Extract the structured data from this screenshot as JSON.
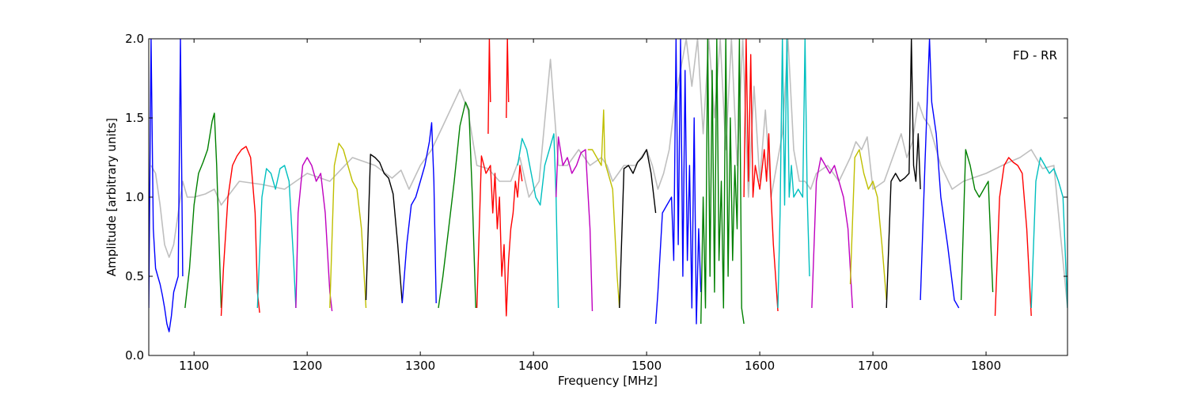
{
  "chart_data": {
    "type": "line",
    "title": "",
    "annotation": "FD - RR",
    "xlabel": "Frequency [MHz]",
    "ylabel": "Amplitude [arbitrary units]",
    "xlim": [
      1060,
      1872
    ],
    "ylim": [
      0.0,
      2.0
    ],
    "xticks": [
      1100,
      1200,
      1300,
      1400,
      1500,
      1600,
      1700,
      1800
    ],
    "xtick_labels": [
      "1100",
      "1200",
      "1300",
      "1400",
      "1500",
      "1600",
      "1700",
      "1800"
    ],
    "yticks": [
      0.0,
      0.5,
      1.0,
      1.5,
      2.0
    ],
    "ytick_labels": [
      "0.0",
      "0.5",
      "1.0",
      "1.5",
      "2.0"
    ],
    "grid": false,
    "colors": {
      "blue": "#0000ff",
      "green": "#008000",
      "red": "#ff0000",
      "cyan": "#00bfbf",
      "magenta": "#bf00bf",
      "olive": "#bfbf00",
      "black": "#000000",
      "background_gray": "#bfbfbf"
    },
    "background_trace": {
      "color": "#bfbfbf",
      "x": [
        1062,
        1066,
        1070,
        1074,
        1078,
        1082,
        1086,
        1090,
        1094,
        1100,
        1110,
        1118,
        1124,
        1140,
        1160,
        1180,
        1200,
        1220,
        1240,
        1260,
        1275,
        1283,
        1290,
        1300,
        1310,
        1320,
        1335,
        1342,
        1350,
        1360,
        1370,
        1380,
        1388,
        1396,
        1405,
        1415,
        1422,
        1430,
        1440,
        1450,
        1460,
        1465,
        1470,
        1480,
        1490,
        1500,
        1505,
        1510,
        1515,
        1520,
        1525,
        1530,
        1535,
        1540,
        1545,
        1550,
        1555,
        1560,
        1565,
        1570,
        1575,
        1580,
        1585,
        1590,
        1595,
        1600,
        1605,
        1610,
        1615,
        1620,
        1625,
        1630,
        1635,
        1640,
        1645,
        1650,
        1660,
        1670,
        1680,
        1685,
        1690,
        1695,
        1700,
        1710,
        1720,
        1725,
        1730,
        1735,
        1740,
        1745,
        1750,
        1760,
        1770,
        1780,
        1800,
        1820,
        1830,
        1840,
        1850,
        1860,
        1872
      ],
      "y": [
        1.2,
        1.15,
        0.95,
        0.7,
        0.62,
        0.7,
        0.9,
        1.1,
        1.0,
        1.0,
        1.02,
        1.05,
        0.95,
        1.1,
        1.08,
        1.05,
        1.15,
        1.1,
        1.25,
        1.2,
        1.12,
        1.17,
        1.05,
        1.2,
        1.3,
        1.45,
        1.68,
        1.55,
        1.2,
        1.18,
        1.1,
        1.1,
        1.25,
        1.0,
        1.1,
        1.87,
        1.2,
        1.2,
        1.3,
        1.2,
        1.25,
        1.2,
        1.1,
        1.2,
        1.2,
        1.3,
        1.2,
        1.05,
        1.15,
        1.3,
        1.6,
        1.8,
        2.0,
        1.7,
        2.0,
        1.4,
        2.0,
        1.5,
        2.0,
        1.3,
        2.0,
        1.2,
        2.0,
        1.0,
        1.7,
        1.1,
        1.55,
        1.0,
        1.2,
        1.4,
        2.0,
        1.3,
        1.1,
        1.1,
        1.05,
        1.15,
        1.2,
        1.1,
        1.25,
        1.35,
        1.3,
        1.38,
        1.05,
        1.1,
        1.3,
        1.4,
        1.25,
        1.35,
        1.6,
        1.5,
        1.45,
        1.2,
        1.05,
        1.1,
        1.15,
        1.22,
        1.25,
        1.3,
        1.18,
        1.2,
        0.3
      ]
    },
    "series": [
      {
        "color": "#0000ff",
        "x": [
          1060,
          1062,
          1064,
          1066,
          1068,
          1070,
          1072,
          1074,
          1076,
          1078,
          1080,
          1082,
          1084,
          1086,
          1088,
          1090
        ],
        "y": [
          0.3,
          2.0,
          0.8,
          0.55,
          0.5,
          0.45,
          0.38,
          0.3,
          0.2,
          0.15,
          0.25,
          0.4,
          0.45,
          0.5,
          2.0,
          0.5
        ]
      },
      {
        "color": "#008000",
        "x": [
          1092,
          1096,
          1100,
          1104,
          1108,
          1112,
          1116,
          1118,
          1120,
          1124
        ],
        "y": [
          0.3,
          0.55,
          0.95,
          1.15,
          1.22,
          1.3,
          1.48,
          1.53,
          1.2,
          0.3
        ]
      },
      {
        "color": "#ff0000",
        "x": [
          1124,
          1126,
          1130,
          1134,
          1138,
          1142,
          1146,
          1150,
          1154,
          1156,
          1158
        ],
        "y": [
          0.25,
          0.55,
          1.0,
          1.2,
          1.26,
          1.3,
          1.32,
          1.25,
          0.9,
          0.4,
          0.27
        ]
      },
      {
        "color": "#00bfbf",
        "x": [
          1156,
          1160,
          1164,
          1168,
          1172,
          1176,
          1180,
          1184,
          1188,
          1190
        ],
        "y": [
          0.3,
          1.0,
          1.18,
          1.15,
          1.05,
          1.18,
          1.2,
          1.1,
          0.6,
          0.3
        ]
      },
      {
        "color": "#bf00bf",
        "x": [
          1190,
          1192,
          1196,
          1200,
          1204,
          1208,
          1212,
          1216,
          1220,
          1222
        ],
        "y": [
          0.3,
          0.9,
          1.2,
          1.25,
          1.2,
          1.1,
          1.15,
          0.9,
          0.4,
          0.28
        ]
      },
      {
        "color": "#bfbf00",
        "x": [
          1220,
          1224,
          1228,
          1232,
          1236,
          1240,
          1244,
          1248,
          1252
        ],
        "y": [
          0.3,
          1.2,
          1.34,
          1.3,
          1.2,
          1.1,
          1.05,
          0.8,
          0.3
        ]
      },
      {
        "color": "#000000",
        "x": [
          1252,
          1256,
          1260,
          1264,
          1268,
          1272,
          1276,
          1280,
          1284
        ],
        "y": [
          0.35,
          1.27,
          1.25,
          1.22,
          1.15,
          1.12,
          1.02,
          0.7,
          0.33
        ]
      },
      {
        "color": "#0000ff",
        "x": [
          1284,
          1288,
          1292,
          1296,
          1300,
          1304,
          1308,
          1310,
          1312,
          1314
        ],
        "y": [
          0.33,
          0.7,
          0.95,
          1.0,
          1.1,
          1.2,
          1.35,
          1.47,
          1.1,
          0.33
        ]
      },
      {
        "color": "#008000",
        "x": [
          1316,
          1320,
          1325,
          1330,
          1335,
          1340,
          1343,
          1346,
          1349
        ],
        "y": [
          0.3,
          0.5,
          0.8,
          1.1,
          1.45,
          1.6,
          1.55,
          1.0,
          0.3
        ]
      },
      {
        "color": "#ff0000",
        "x": [
          1350,
          1354,
          1358,
          1362,
          1364,
          1366,
          1368,
          1370,
          1372,
          1374,
          1376,
          1378,
          1380,
          1382,
          1384,
          1386,
          1388,
          1390
        ],
        "y": [
          0.3,
          1.26,
          1.15,
          1.2,
          0.9,
          1.15,
          0.8,
          1.0,
          0.5,
          0.7,
          0.25,
          0.6,
          0.8,
          0.9,
          1.1,
          1.0,
          1.2,
          1.1
        ]
      },
      {
        "color": "#ff0000",
        "x": [
          1360,
          1361,
          1362
        ],
        "y": [
          1.4,
          2.0,
          1.6
        ]
      },
      {
        "color": "#ff0000",
        "x": [
          1376,
          1377,
          1378
        ],
        "y": [
          1.5,
          2.0,
          1.6
        ]
      },
      {
        "color": "#00bfbf",
        "x": [
          1386,
          1390,
          1394,
          1398,
          1402,
          1406,
          1410,
          1414,
          1418,
          1420,
          1422
        ],
        "y": [
          1.2,
          1.37,
          1.3,
          1.15,
          1.0,
          0.95,
          1.2,
          1.3,
          1.4,
          1.0,
          0.3
        ]
      },
      {
        "color": "#bf00bf",
        "x": [
          1420,
          1422,
          1426,
          1430,
          1434,
          1438,
          1442,
          1446,
          1450,
          1452
        ],
        "y": [
          1.0,
          1.38,
          1.2,
          1.25,
          1.15,
          1.2,
          1.28,
          1.3,
          0.8,
          0.28
        ]
      },
      {
        "color": "#bfbf00",
        "x": [
          1448,
          1452,
          1456,
          1460,
          1462,
          1463,
          1464,
          1466,
          1470,
          1474,
          1476
        ],
        "y": [
          1.3,
          1.3,
          1.25,
          1.2,
          1.55,
          1.25,
          1.2,
          1.15,
          1.05,
          0.5,
          0.3
        ]
      },
      {
        "color": "#000000",
        "x": [
          1476,
          1480,
          1484,
          1488,
          1492,
          1496,
          1500,
          1504,
          1508
        ],
        "y": [
          0.3,
          1.18,
          1.2,
          1.15,
          1.22,
          1.25,
          1.3,
          1.15,
          0.9
        ]
      },
      {
        "color": "#0000ff",
        "x": [
          1508,
          1510,
          1514,
          1518,
          1522,
          1524,
          1526,
          1528,
          1530,
          1532,
          1534,
          1536,
          1538,
          1540,
          1542,
          1544,
          1546,
          1548
        ],
        "y": [
          0.2,
          0.4,
          0.9,
          0.95,
          1.0,
          0.6,
          2.0,
          0.7,
          2.0,
          0.5,
          1.8,
          0.6,
          1.2,
          0.3,
          1.5,
          0.2,
          0.8,
          0.4
        ]
      },
      {
        "color": "#008000",
        "x": [
          1548,
          1550,
          1552,
          1554,
          1556,
          1558,
          1560,
          1562,
          1564,
          1566,
          1568,
          1570,
          1572,
          1574,
          1576,
          1578,
          1580,
          1582,
          1584,
          1586
        ],
        "y": [
          0.2,
          1.0,
          0.3,
          2.0,
          0.5,
          1.8,
          0.4,
          2.0,
          0.6,
          1.1,
          0.3,
          2.0,
          0.5,
          1.5,
          0.6,
          1.2,
          0.8,
          2.0,
          0.3,
          0.2
        ]
      },
      {
        "color": "#ff0000",
        "x": [
          1586,
          1588,
          1590,
          1592,
          1594,
          1596,
          1600,
          1604,
          1606,
          1608,
          1610,
          1612,
          1614,
          1616
        ],
        "y": [
          1.0,
          2.0,
          1.1,
          1.9,
          1.0,
          1.2,
          1.05,
          1.3,
          1.1,
          1.4,
          1.0,
          0.7,
          0.5,
          0.28
        ]
      },
      {
        "color": "#00bfbf",
        "x": [
          1616,
          1618,
          1620,
          1622,
          1624,
          1626,
          1628,
          1630,
          1634,
          1638,
          1640,
          1642,
          1644
        ],
        "y": [
          0.3,
          0.9,
          2.0,
          0.95,
          2.0,
          1.0,
          1.2,
          1.0,
          1.05,
          1.0,
          2.0,
          1.0,
          0.5
        ]
      },
      {
        "color": "#bf00bf",
        "x": [
          1646,
          1650,
          1654,
          1658,
          1662,
          1666,
          1670,
          1674,
          1678,
          1682
        ],
        "y": [
          0.3,
          1.1,
          1.25,
          1.2,
          1.15,
          1.2,
          1.1,
          1.0,
          0.8,
          0.3
        ]
      },
      {
        "color": "#bfbf00",
        "x": [
          1680,
          1684,
          1688,
          1692,
          1696,
          1700,
          1704,
          1708,
          1712
        ],
        "y": [
          0.45,
          1.25,
          1.3,
          1.15,
          1.05,
          1.1,
          1.0,
          0.7,
          0.35
        ]
      },
      {
        "color": "#000000",
        "x": [
          1712,
          1716,
          1720,
          1724,
          1728,
          1732,
          1734,
          1736,
          1738,
          1740,
          1742
        ],
        "y": [
          0.3,
          1.1,
          1.15,
          1.1,
          1.12,
          1.15,
          2.0,
          1.2,
          1.1,
          1.4,
          1.05
        ]
      },
      {
        "color": "#0000ff",
        "x": [
          1742,
          1746,
          1748,
          1750,
          1752,
          1756,
          1760,
          1766,
          1772,
          1776
        ],
        "y": [
          0.35,
          1.2,
          1.6,
          2.0,
          1.6,
          1.4,
          1.0,
          0.7,
          0.35,
          0.3
        ]
      },
      {
        "color": "#008000",
        "x": [
          1778,
          1782,
          1786,
          1790,
          1794,
          1798,
          1802,
          1806
        ],
        "y": [
          0.35,
          1.3,
          1.2,
          1.05,
          1.0,
          1.05,
          1.1,
          0.4
        ]
      },
      {
        "color": "#ff0000",
        "x": [
          1808,
          1812,
          1816,
          1820,
          1824,
          1828,
          1832,
          1836,
          1840
        ],
        "y": [
          0.25,
          1.0,
          1.2,
          1.25,
          1.22,
          1.2,
          1.15,
          0.8,
          0.25
        ]
      },
      {
        "color": "#00bfbf",
        "x": [
          1840,
          1844,
          1848,
          1852,
          1856,
          1860,
          1864,
          1868,
          1872
        ],
        "y": [
          0.3,
          1.1,
          1.25,
          1.2,
          1.15,
          1.18,
          1.1,
          1.0,
          0.3
        ]
      }
    ]
  }
}
